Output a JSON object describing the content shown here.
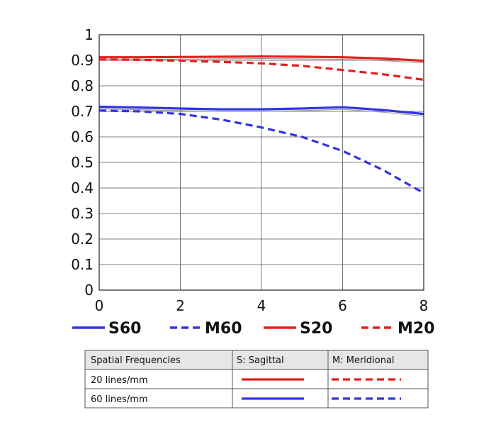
{
  "chart_data": {
    "type": "line",
    "xlim": [
      0,
      8
    ],
    "ylim": [
      0,
      1
    ],
    "x_ticks": [
      "0",
      "2",
      "4",
      "6",
      "8"
    ],
    "y_ticks": [
      "0",
      "0.1",
      "0.2",
      "0.3",
      "0.4",
      "0.5",
      "0.6",
      "0.7",
      "0.8",
      "0.9",
      "1"
    ],
    "grid": true,
    "series": [
      {
        "name": "S60",
        "color": "#3333e6",
        "style": "solid",
        "x": [
          0,
          1,
          2,
          3,
          4,
          5,
          6,
          7,
          8
        ],
        "y": [
          0.718,
          0.715,
          0.711,
          0.708,
          0.708,
          0.711,
          0.716,
          0.705,
          0.69
        ]
      },
      {
        "name": "M60",
        "color": "#3333e6",
        "style": "dashed",
        "x": [
          0,
          1,
          2,
          3,
          4,
          5,
          6,
          7,
          8
        ],
        "y": [
          0.703,
          0.7,
          0.69,
          0.668,
          0.637,
          0.6,
          0.545,
          0.47,
          0.38
        ]
      },
      {
        "name": "S20",
        "color": "#e61e1e",
        "style": "solid",
        "x": [
          0,
          1,
          2,
          3,
          4,
          5,
          6,
          7,
          8
        ],
        "y": [
          0.912,
          0.912,
          0.913,
          0.914,
          0.915,
          0.914,
          0.912,
          0.907,
          0.898
        ]
      },
      {
        "name": "M20",
        "color": "#e61e1e",
        "style": "dashed",
        "x": [
          0,
          1,
          2,
          3,
          4,
          5,
          6,
          7,
          8
        ],
        "y": [
          0.903,
          0.902,
          0.898,
          0.894,
          0.888,
          0.878,
          0.862,
          0.845,
          0.824
        ]
      }
    ]
  },
  "table": {
    "headers": [
      "Spatial Frequencies",
      "S: Sagittal",
      "M: Meridional"
    ],
    "rows": [
      {
        "label": "20 lines/mm",
        "color": "#e61e1e"
      },
      {
        "label": "60 lines/mm",
        "color": "#3333e6"
      }
    ]
  }
}
